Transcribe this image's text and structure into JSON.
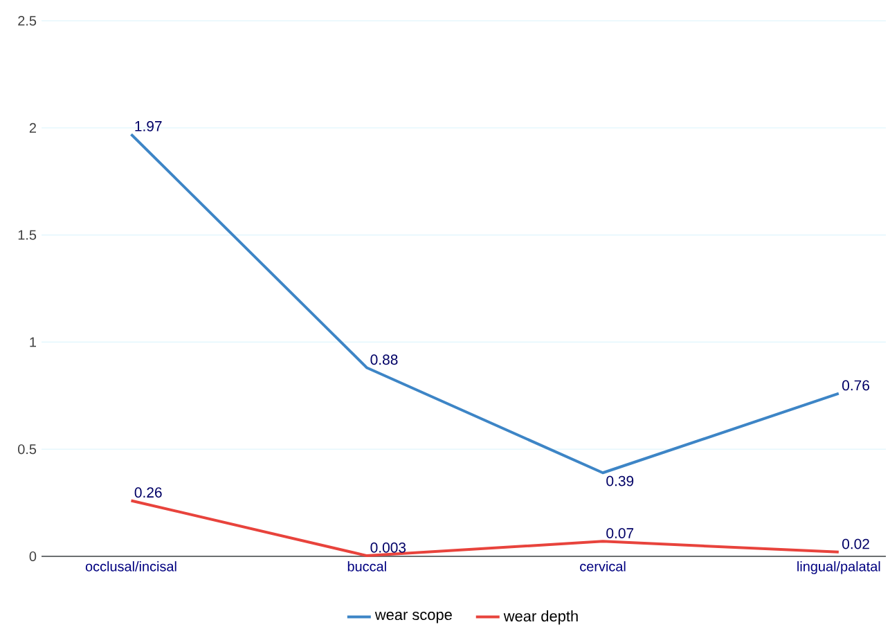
{
  "chart_data": {
    "type": "line",
    "categories": [
      "occlusal/incisal",
      "buccal",
      "cervical",
      "lingual/palatal"
    ],
    "series": [
      {
        "name": "wear scope",
        "color": "#3d85c6",
        "values": [
          1.97,
          0.88,
          0.39,
          0.76
        ],
        "value_labels": [
          "1.97",
          "0.88",
          "0.39",
          "0.76"
        ]
      },
      {
        "name": "wear depth",
        "color": "#e8433c",
        "values": [
          0.26,
          0.003,
          0.07,
          0.02
        ],
        "value_labels": [
          "0.26",
          "0.003",
          "0.07",
          "0.02"
        ]
      }
    ],
    "ylim": [
      0,
      2.5
    ],
    "yticks": [
      0,
      0.5,
      1,
      1.5,
      2,
      2.5
    ],
    "grid": "y",
    "legend": "bottom",
    "marker": "none",
    "line_style": "solid"
  }
}
